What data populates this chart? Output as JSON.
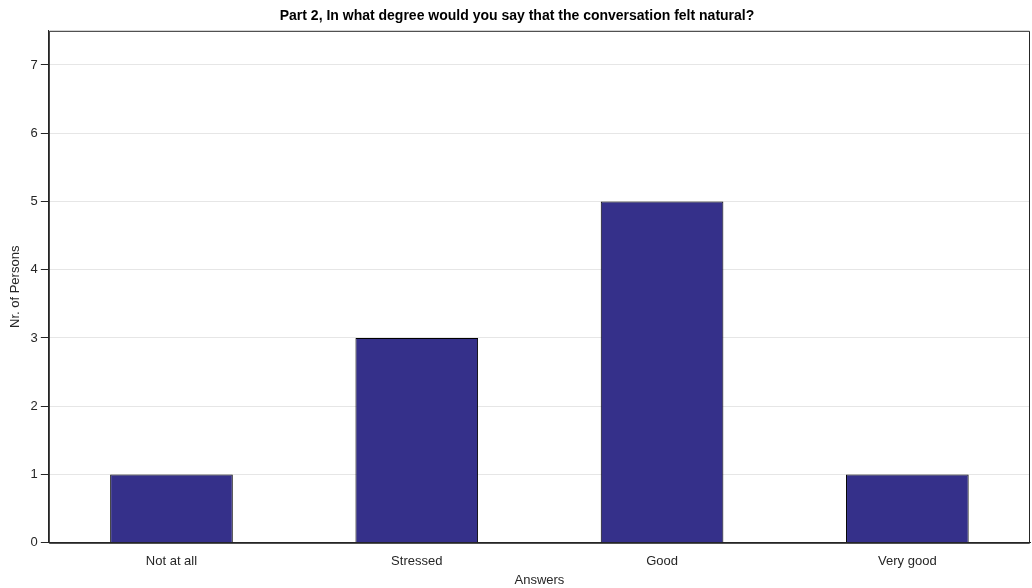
{
  "chart_data": {
    "type": "bar",
    "title": "Part 2, In what degree would you say that the conversation felt natural?",
    "xlabel": "Answers",
    "ylabel": "Nr. of Persons",
    "categories": [
      "Not at all",
      "Stressed",
      "Good",
      "Very good"
    ],
    "values": [
      1,
      3,
      5,
      1
    ],
    "color": "#35308a",
    "ylim": [
      0,
      7.5
    ],
    "yticks": [
      0,
      1,
      2,
      3,
      4,
      5,
      6,
      7
    ],
    "grid": "y",
    "legend": false
  }
}
